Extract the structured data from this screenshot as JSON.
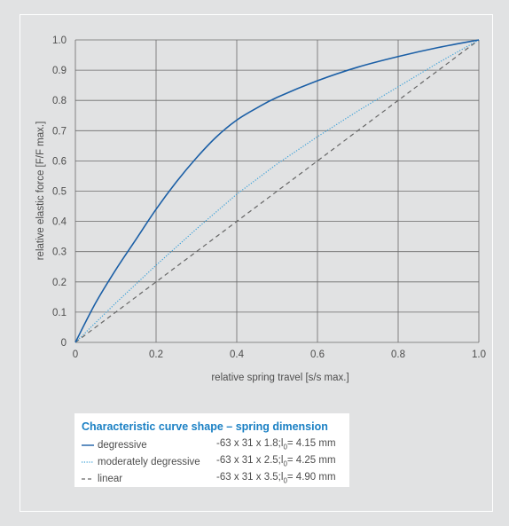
{
  "chart_data": {
    "type": "line",
    "xlabel": "relative spring travel [s/s max.]",
    "ylabel": "relative  elastic force [F/F max.]",
    "xlim": [
      0,
      1.0
    ],
    "ylim": [
      0,
      1.0
    ],
    "xticks": [
      0,
      0.2,
      0.4,
      0.6,
      0.8,
      1.0
    ],
    "xtick_labels": [
      "0",
      "0.2",
      "0.4",
      "0.6",
      "0.8",
      "1.0"
    ],
    "yticks": [
      0,
      0.1,
      0.2,
      0.3,
      0.4,
      0.5,
      0.6,
      0.7,
      0.8,
      0.9,
      1.0
    ],
    "ytick_labels": [
      "0",
      "0.1",
      "0.2",
      "0.3",
      "0.4",
      "0.5",
      "0.6",
      "0.7",
      "0.8",
      "0.9",
      "1.0"
    ],
    "grid": true,
    "series": [
      {
        "name": "degressive",
        "color": "#1b5fa6",
        "style": "solid",
        "x": [
          0,
          0.05,
          0.1,
          0.15,
          0.2,
          0.25,
          0.3,
          0.35,
          0.4,
          0.45,
          0.5,
          0.6,
          0.7,
          0.8,
          0.9,
          1.0
        ],
        "y": [
          0,
          0.13,
          0.24,
          0.34,
          0.44,
          0.53,
          0.61,
          0.68,
          0.735,
          0.775,
          0.81,
          0.865,
          0.91,
          0.945,
          0.975,
          1.0
        ]
      },
      {
        "name": "moderately degressive",
        "color": "#3aa0d8",
        "style": "dotted",
        "x": [
          0,
          0.1,
          0.2,
          0.3,
          0.4,
          0.5,
          0.6,
          0.7,
          0.8,
          0.9,
          1.0
        ],
        "y": [
          0,
          0.13,
          0.255,
          0.375,
          0.49,
          0.59,
          0.68,
          0.765,
          0.845,
          0.925,
          1.0
        ]
      },
      {
        "name": "linear",
        "color": "#666666",
        "style": "dashed",
        "x": [
          0,
          1.0
        ],
        "y": [
          0,
          1.0
        ]
      }
    ]
  },
  "legend": {
    "title": "Characteristic curve shape – spring dimension",
    "items": [
      {
        "label": "degressive",
        "dimension": "-63 x 31 x 1.8;l",
        "sub": "0",
        "value": "= 4.15 mm"
      },
      {
        "label": "moderately degressive",
        "dimension": "-63 x 31 x 2.5;l",
        "sub": "0",
        "value": "= 4.25 mm"
      },
      {
        "label": "linear",
        "dimension": "-63 x 31 x 3.5;l",
        "sub": "0",
        "value": "= 4.90 mm"
      }
    ]
  }
}
